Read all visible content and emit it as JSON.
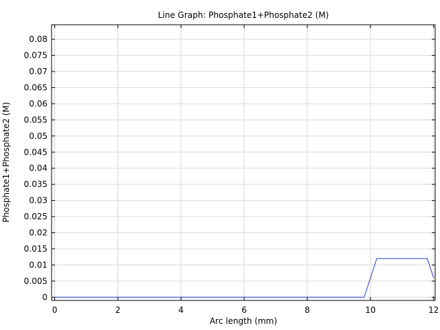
{
  "chart_data": {
    "type": "line",
    "title": "Line Graph: Phosphate1+Phosphate2 (M)",
    "xlabel": "Arc length (mm)",
    "ylabel": "Phosphate1+Phosphate2 (M)",
    "xlim": [
      -0.1,
      12.05
    ],
    "ylim": [
      -0.001,
      0.0845
    ],
    "x_ticks": [
      0,
      2,
      4,
      6,
      8,
      10,
      12
    ],
    "x_tick_labels": [
      "0",
      "2",
      "4",
      "6",
      "8",
      "10",
      "12"
    ],
    "y_ticks": [
      0,
      0.005,
      0.01,
      0.015,
      0.02,
      0.025,
      0.03,
      0.035,
      0.04,
      0.045,
      0.05,
      0.055,
      0.06,
      0.065,
      0.07,
      0.075,
      0.08
    ],
    "y_tick_labels": [
      "0",
      "0.005",
      "0.01",
      "0.015",
      "0.02",
      "0.025",
      "0.03",
      "0.035",
      "0.04",
      "0.045",
      "0.05",
      "0.055",
      "0.06",
      "0.065",
      "0.07",
      "0.075",
      "0.08"
    ],
    "grid": true,
    "line_color": "#3a4fd0",
    "grid_color": "#e0e0e0",
    "series": [
      {
        "x": [
          0,
          9.8,
          10.2,
          11.8,
          12.0
        ],
        "y": [
          0,
          0,
          0.012,
          0.012,
          0.006
        ]
      }
    ]
  }
}
